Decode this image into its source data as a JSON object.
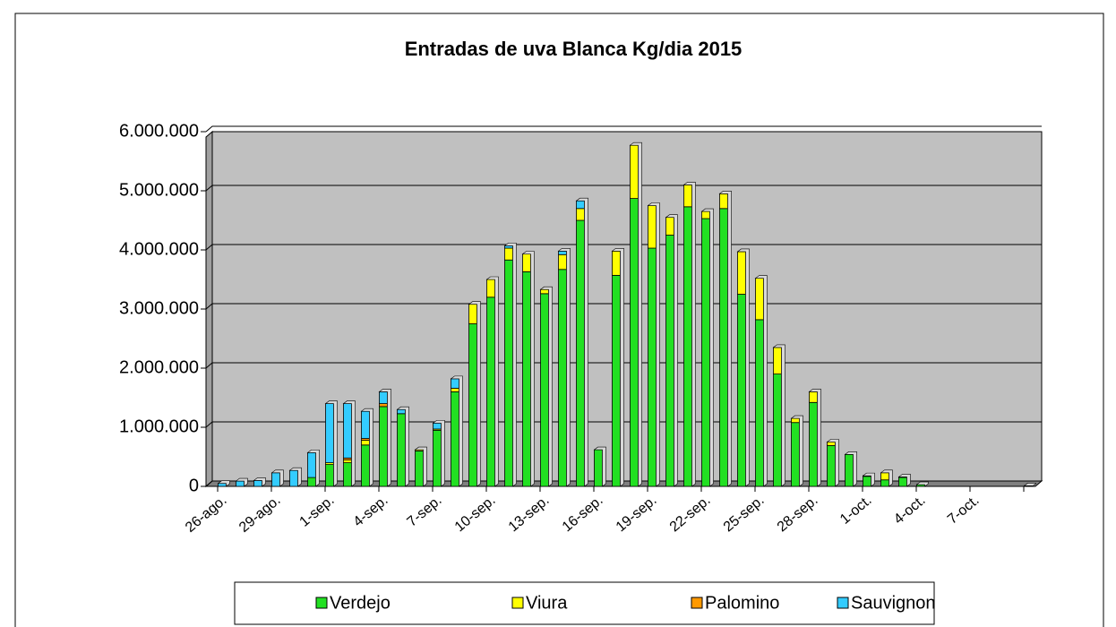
{
  "chart_data": {
    "type": "stacked_bar",
    "title": "Entradas de uva Blanca Kg/dia 2015",
    "categories": [
      "26-ago.",
      null,
      null,
      "29-ago.",
      null,
      null,
      "1-sep.",
      null,
      null,
      "4-sep.",
      null,
      null,
      "7-sep.",
      null,
      null,
      "10-sep.",
      null,
      null,
      "13-sep.",
      null,
      null,
      "16-sep.",
      null,
      null,
      "19-sep.",
      null,
      null,
      "22-sep.",
      null,
      null,
      "25-sep.",
      null,
      null,
      "28-sep.",
      null,
      null,
      "1-oct.",
      null,
      null,
      "4-oct.",
      null,
      null,
      "7-oct.",
      null,
      null,
      null
    ],
    "series": [
      {
        "name": "Verdejo",
        "color": "#22e022",
        "values": [
          0,
          0,
          0,
          0,
          0,
          150000,
          370000,
          400000,
          700000,
          1350000,
          1230000,
          600000,
          950000,
          1600000,
          2750000,
          3200000,
          3830000,
          3630000,
          3260000,
          3670000,
          4500000,
          620000,
          3570000,
          4870000,
          4030000,
          4250000,
          4730000,
          4530000,
          4700000,
          3250000,
          2820000,
          1900000,
          1080000,
          1420000,
          690000,
          540000,
          170000,
          110000,
          150000,
          30000,
          0,
          0,
          0,
          0,
          0,
          0
        ]
      },
      {
        "name": "Viura",
        "color": "#ffff00",
        "values": [
          0,
          0,
          0,
          0,
          0,
          0,
          30000,
          50000,
          80000,
          0,
          0,
          20000,
          20000,
          60000,
          330000,
          300000,
          200000,
          300000,
          70000,
          250000,
          200000,
          0,
          410000,
          900000,
          720000,
          300000,
          370000,
          120000,
          250000,
          720000,
          700000,
          450000,
          70000,
          180000,
          60000,
          0,
          10000,
          120000,
          10000,
          0,
          0,
          0,
          0,
          0,
          0,
          0
        ]
      },
      {
        "name": "Palomino",
        "color": "#ff9900",
        "values": [
          0,
          0,
          0,
          0,
          0,
          0,
          0,
          30000,
          30000,
          50000,
          0,
          0,
          0,
          0,
          0,
          0,
          0,
          0,
          0,
          0,
          0,
          0,
          0,
          0,
          0,
          0,
          0,
          0,
          0,
          0,
          0,
          0,
          0,
          0,
          0,
          0,
          0,
          0,
          0,
          0,
          0,
          0,
          0,
          0,
          0,
          0
        ]
      },
      {
        "name": "Sauvignon",
        "color": "#33ccff",
        "values": [
          50000,
          90000,
          100000,
          230000,
          270000,
          420000,
          1000000,
          920000,
          460000,
          200000,
          70000,
          0,
          100000,
          160000,
          0,
          0,
          40000,
          0,
          0,
          60000,
          130000,
          0,
          0,
          0,
          0,
          0,
          0,
          0,
          0,
          0,
          0,
          0,
          0,
          0,
          0,
          0,
          0,
          0,
          0,
          0,
          0,
          0,
          0,
          0,
          0,
          10000
        ]
      }
    ],
    "ylim": [
      0,
      6000000
    ],
    "yticks": [
      0,
      {
        "value": 1000000,
        "label": "1.000.000"
      },
      {
        "value": 2000000,
        "label": "2.000.000"
      },
      {
        "value": 3000000,
        "label": "3.000.000"
      },
      {
        "value": 4000000,
        "label": "4.000.000"
      },
      {
        "value": 5000000,
        "label": "5.000.000"
      },
      {
        "value": 6000000,
        "label": "6.000.000"
      }
    ],
    "grid": true,
    "legend": "bottom"
  }
}
